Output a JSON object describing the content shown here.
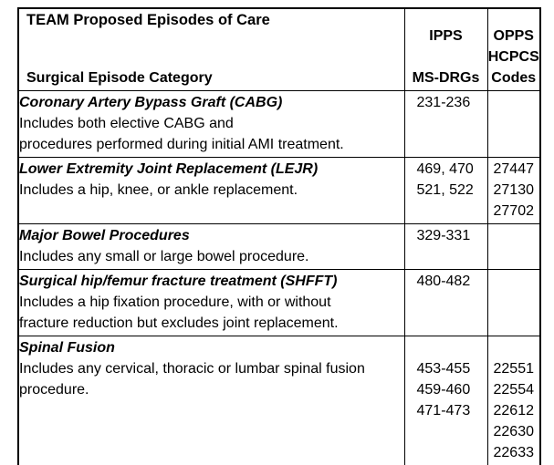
{
  "table": {
    "title": "TEAM Proposed Episodes of Care",
    "header": {
      "category_label": "Surgical Episode Category",
      "ipps_lines": [
        "IPPS",
        "",
        "MS-DRGs"
      ],
      "opps_lines": [
        "OPPS",
        "HCPCS",
        "Codes"
      ]
    },
    "rows": [
      {
        "title": "Coronary Artery Bypass Graft (CABG)",
        "description_lines": [
          "Includes both elective CABG and",
          "procedures performed during initial AMI treatment."
        ],
        "ipps_codes": [
          "231-236"
        ],
        "opps_codes": []
      },
      {
        "title": "Lower Extremity Joint Replacement (LEJR)",
        "description_lines": [
          "Includes a hip, knee, or ankle replacement."
        ],
        "ipps_codes": [
          "469, 470",
          "521, 522"
        ],
        "opps_codes": [
          "27447",
          "27130",
          "27702"
        ]
      },
      {
        "title": "Major Bowel Procedures",
        "description_lines": [
          "Includes any small or large bowel procedure."
        ],
        "ipps_codes": [
          "329-331"
        ],
        "opps_codes": []
      },
      {
        "title": "Surgical hip/femur fracture treatment (SHFFT)",
        "description_lines": [
          "Includes a hip fixation procedure, with or without",
          "fracture reduction but excludes joint replacement."
        ],
        "ipps_codes": [
          "480-482"
        ],
        "opps_codes": []
      },
      {
        "title": "Spinal Fusion",
        "description_lines": [
          "Includes any cervical, thoracic or lumbar spinal fusion",
          "procedure."
        ],
        "ipps_codes": [
          "",
          "453-455",
          "459-460",
          "471-473"
        ],
        "opps_codes": [
          "",
          "22551",
          "22554",
          "22612",
          "22630",
          "22633"
        ]
      }
    ],
    "colors": {
      "border": "#000000",
      "text": "#000000",
      "background": "#ffffff"
    }
  }
}
